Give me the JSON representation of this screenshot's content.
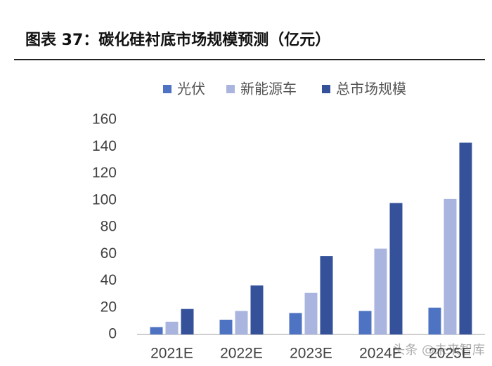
{
  "chart_data": {
    "type": "bar",
    "title": "图表 37：碳化硅衬底市场规模预测（亿元）",
    "categories": [
      "2021E",
      "2022E",
      "2023E",
      "2024E",
      "2025E"
    ],
    "series": [
      {
        "name": "光伏",
        "color": "#4f73c3",
        "values": [
          5.5,
          11,
          16,
          17.5,
          20
        ]
      },
      {
        "name": "新能源车",
        "color": "#aab5df",
        "values": [
          9.5,
          17.5,
          31,
          64,
          101
        ]
      },
      {
        "name": "总市场规模",
        "color": "#34519a",
        "values": [
          19,
          36.5,
          58.5,
          98,
          143
        ]
      }
    ],
    "ylim": [
      0,
      160
    ],
    "yticks": [
      0,
      20,
      40,
      60,
      80,
      100,
      120,
      140,
      160
    ],
    "grid": false,
    "watermark": "头条 @未来智库"
  }
}
